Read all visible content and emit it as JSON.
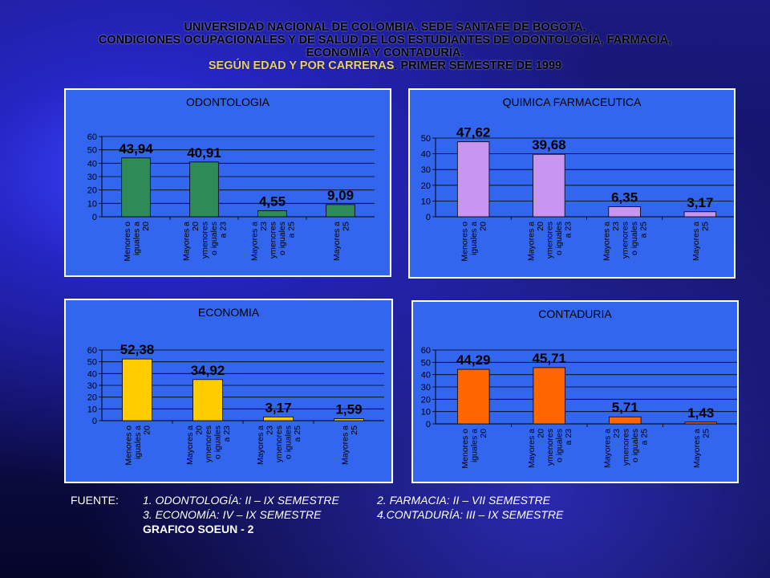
{
  "header": {
    "line1": "UNIVERSIDAD NACIONAL DE COLOMBIA. SEDE SANTAFE DE BOGOTA.",
    "line2": "CONDICIONES OCUPACIONALES Y DE SALUD DE LOS ESTUDIANTES DE ODONTOLOGÍA, FARMACIA,",
    "line3": "ECONOMÍA Y CONTADURÍA.",
    "line4_highlight": "SEGÚN EDAD  Y POR CARRERAS",
    "line4_rest": ". PRIMER SEMESTRE DE 1999"
  },
  "colors": {
    "plot_area": "#3366ee",
    "odontologia": "#2e8b57",
    "quimica": "#c896f0",
    "economia": "#ffcc00",
    "contaduria": "#ff6600"
  },
  "chart_data": [
    {
      "type": "bar",
      "title": "ODONTOLOGIA",
      "categories": [
        "Menores o iguales a 20",
        "Mayores a 20 ymenores o iguales a 23",
        "Mayores a 23 ymenores o iguales a 25",
        "Mayores a 25"
      ],
      "values": [
        43.94,
        40.91,
        4.55,
        9.09
      ],
      "value_labels": [
        "43,94",
        "40,91",
        "4,55",
        "9,09"
      ],
      "yticks": [
        "0",
        "10",
        "20",
        "30",
        "40",
        "50",
        "60"
      ],
      "ylim": [
        0,
        60
      ],
      "color": "#2e8b57",
      "grid": true
    },
    {
      "type": "bar",
      "title": "QUIMICA FARMACEUTICA",
      "categories": [
        "Menores o iguales a 20",
        "Mayores a 20 ymenores o iguales a 23",
        "Mayores a 23 ymenores o iguales a 25",
        "Mayores a 25"
      ],
      "values": [
        47.62,
        39.68,
        6.35,
        3.17
      ],
      "value_labels": [
        "47,62",
        "39,68",
        "6,35",
        "3,17"
      ],
      "yticks": [
        "0",
        "10",
        "20",
        "30",
        "40",
        "50"
      ],
      "ylim": [
        0,
        50
      ],
      "color": "#c896f0",
      "grid": true
    },
    {
      "type": "bar",
      "title": "ECONOMIA",
      "categories": [
        "Menores o iguales a 20",
        "Mayores a 20 ymenores o iguales a 23",
        "Mayores a 23 ymenores o iguales a 25",
        "Mayores a 25"
      ],
      "values": [
        52.38,
        34.92,
        3.17,
        1.59
      ],
      "value_labels": [
        "52,38",
        "34,92",
        "3,17",
        "1,59"
      ],
      "yticks": [
        "0",
        "10",
        "20",
        "30",
        "40",
        "50",
        "60"
      ],
      "ylim": [
        0,
        60
      ],
      "color": "#ffcc00",
      "grid": true
    },
    {
      "type": "bar",
      "title": "CONTADURIA",
      "categories": [
        "Menores o iguales a 20",
        "Mayores a 20 ymenores o iguales a 23",
        "Mayores a 23 ymenores o iguales a 25",
        "Mayores a 25"
      ],
      "values": [
        44.29,
        45.71,
        5.71,
        1.43
      ],
      "value_labels": [
        "44,29",
        "45,71",
        "5,71",
        "1,43"
      ],
      "yticks": [
        "0",
        "10",
        "20",
        "30",
        "40",
        "50",
        "60"
      ],
      "ylim": [
        0,
        60
      ],
      "color": "#ff6600",
      "grid": true
    }
  ],
  "category_label_lines": [
    [
      "Menores o",
      "iguales a",
      "20"
    ],
    [
      "Mayores a",
      "20",
      "ymenores",
      "o iguales",
      "a 23"
    ],
    [
      "Mayores a",
      "23",
      "ymenores",
      "o iguales",
      "a 25"
    ],
    [
      "Mayores a",
      "25"
    ]
  ],
  "footer": {
    "label": "FUENTE:",
    "item1": "1. ODONTOLOGÍA: II  – IX SEMESTRE",
    "item2": "2. FARMACIA: II  – VII SEMESTRE",
    "item3": "3. ECONOMÍA: IV – IX SEMESTRE",
    "item4": "4.CONTADURÍA: III – IX SEMESTRE",
    "item5": "GRAFICO SOEUN - 2"
  }
}
